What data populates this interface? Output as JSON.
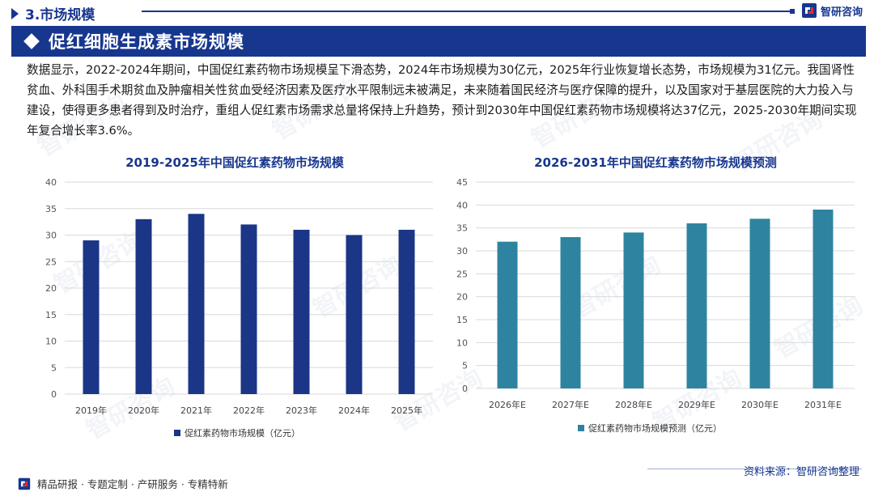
{
  "header": {
    "section_title": "3.市场规模",
    "logo_text": "智研咨询"
  },
  "banner": {
    "title": "促红细胞生成素市场规模"
  },
  "paragraph": "数据显示，2022-2024年期间，中国促红素药物市场规模呈下滑态势，2024年市场规模为30亿元，2025年行业恢复增长态势，市场规模为31亿元。我国肾性贫血、外科围手术期贫血及肿瘤相关性贫血受经济因素及医疗水平限制远未被满足，未来随着国民经济与医疗保障的提升，以及国家对于基层医院的大力投入与建设，使得更多患者得到及时治疗，重组人促红素市场需求总量将保持上升趋势，预计到2030年中国促红素药物市场规模将达37亿元，2025-2030年期间实现年复合增长率3.6%。",
  "watermark": "智研咨询",
  "chart_data": [
    {
      "type": "bar",
      "title": "2019-2025年中国促红素药物市场规模",
      "categories": [
        "2019年",
        "2020年",
        "2021年",
        "2022年",
        "2023年",
        "2024年",
        "2025年"
      ],
      "series": [
        {
          "name": "促红素药物市场规模（亿元）",
          "values": [
            29,
            33,
            34,
            32,
            31,
            30,
            31
          ]
        }
      ],
      "ylim": [
        0,
        40
      ],
      "yticks": [
        0,
        5,
        10,
        15,
        20,
        25,
        30,
        35,
        40
      ],
      "grid": true,
      "legend": "bottom-center",
      "color": "#1b3587"
    },
    {
      "type": "bar",
      "title": "2026-2031年中国促红素药物市场规模预测",
      "categories": [
        "2026年E",
        "2027年E",
        "2028年E",
        "2029年E",
        "2030年E",
        "2031年E"
      ],
      "series": [
        {
          "name": "促红素药物市场规模预测（亿元）",
          "values": [
            32,
            33,
            34,
            36,
            37,
            39
          ]
        }
      ],
      "ylim": [
        0,
        45
      ],
      "yticks": [
        0,
        5,
        10,
        15,
        20,
        25,
        30,
        35,
        40,
        45
      ],
      "grid": true,
      "legend": "bottom-center",
      "color": "#2e84a0"
    }
  ],
  "footer": {
    "source": "资料来源：智研咨询整理",
    "services": "精品研报 · 专题定制 · 产研服务 · 专精特新"
  }
}
